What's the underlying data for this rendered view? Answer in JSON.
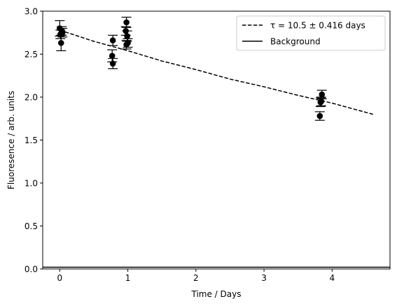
{
  "chart_data": {
    "type": "scatter",
    "title": "",
    "xlabel": "Time / Days",
    "ylabel": "Fluoresence / arb. units",
    "xlim": [
      -0.25,
      4.85
    ],
    "ylim": [
      0,
      3.0
    ],
    "xticks": [
      0,
      1,
      2,
      3,
      4
    ],
    "yticks": [
      0.0,
      0.5,
      1.0,
      1.5,
      2.0,
      2.5,
      3.0
    ],
    "xtick_labels": [
      "0",
      "1",
      "2",
      "3",
      "4"
    ],
    "ytick_labels": [
      "0.0",
      "0.5",
      "1.0",
      "1.5",
      "2.0",
      "2.5",
      "3.0"
    ],
    "grid": false,
    "legend_position": "top-right",
    "series": [
      {
        "kind": "points_with_errorbars",
        "color": "#000000",
        "points": [
          {
            "x": 0.0,
            "y": 2.8,
            "err": 0.09
          },
          {
            "x": 0.01,
            "y": 2.73,
            "err": 0.05
          },
          {
            "x": 0.02,
            "y": 2.63,
            "err": 0.09
          },
          {
            "x": 0.03,
            "y": 2.77,
            "err": 0.05
          },
          {
            "x": 0.04,
            "y": 2.75,
            "err": 0.05
          },
          {
            "x": 0.77,
            "y": 2.48,
            "err": 0.07
          },
          {
            "x": 0.78,
            "y": 2.39,
            "err": 0.06
          },
          {
            "x": 0.78,
            "y": 2.66,
            "err": 0.06
          },
          {
            "x": 0.97,
            "y": 2.77,
            "err": 0.05
          },
          {
            "x": 0.98,
            "y": 2.87,
            "err": 0.06
          },
          {
            "x": 0.99,
            "y": 2.71,
            "err": 0.06
          },
          {
            "x": 1.0,
            "y": 2.63,
            "err": 0.05
          },
          {
            "x": 0.98,
            "y": 2.61,
            "err": 0.05
          },
          {
            "x": 3.82,
            "y": 1.78,
            "err": 0.05
          },
          {
            "x": 3.83,
            "y": 1.94,
            "err": 0.05
          },
          {
            "x": 3.84,
            "y": 1.95,
            "err": 0.05
          },
          {
            "x": 3.85,
            "y": 2.03,
            "err": 0.05
          }
        ]
      },
      {
        "name": "τ =  10.5 ± 0.416 days",
        "kind": "dashed_line",
        "color": "#000000",
        "x": [
          0.0,
          0.5,
          1.0,
          1.5,
          2.0,
          2.5,
          3.0,
          3.5,
          4.0,
          4.6
        ],
        "y": [
          2.78,
          2.65,
          2.54,
          2.42,
          2.32,
          2.21,
          2.12,
          2.02,
          1.93,
          1.8
        ]
      },
      {
        "name": "Background",
        "kind": "solid_hline",
        "color": "#000000",
        "y": 0.02
      }
    ]
  }
}
